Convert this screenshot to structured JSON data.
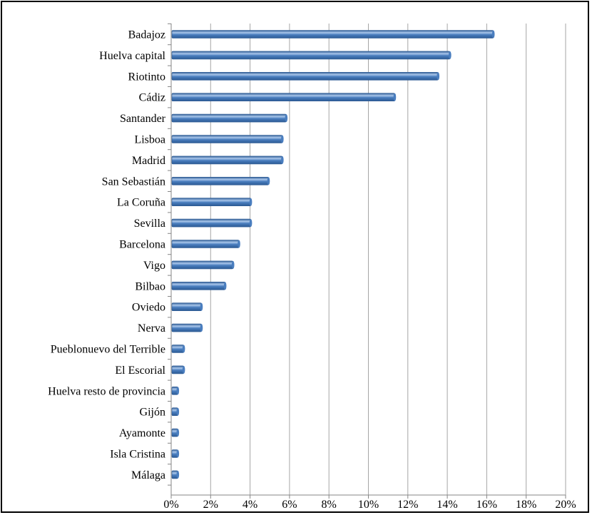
{
  "chart_data": {
    "type": "bar",
    "orientation": "horizontal",
    "title": "",
    "xlabel": "",
    "ylabel": "",
    "categories": [
      "Badajoz",
      "Huelva capital",
      "Riotinto",
      "Cádiz",
      "Santander",
      "Lisboa",
      "Madrid",
      "San Sebastián",
      "La Coruña",
      "Sevilla",
      "Barcelona",
      "Vigo",
      "Bilbao",
      "Oviedo",
      "Nerva",
      "Pueblonuevo del Terrible",
      "El Escorial",
      "Huelva resto de provincia",
      "Gijón",
      "Ayamonte",
      "Isla Cristina",
      "Málaga"
    ],
    "values": [
      16.3,
      14.1,
      13.5,
      11.3,
      5.8,
      5.6,
      5.6,
      4.9,
      4.0,
      4.0,
      3.4,
      3.1,
      2.7,
      1.5,
      1.5,
      0.6,
      0.6,
      0.3,
      0.3,
      0.3,
      0.3,
      0.3
    ],
    "xlim": [
      0,
      20
    ],
    "x_ticks": [
      0,
      2,
      4,
      6,
      8,
      10,
      12,
      14,
      16,
      18,
      20
    ],
    "x_tick_labels": [
      "0%",
      "2%",
      "4%",
      "6%",
      "8%",
      "10%",
      "12%",
      "14%",
      "16%",
      "18%",
      "20%"
    ],
    "vertical_grid": true,
    "legend": "none",
    "colors": {
      "bar_fill": "#4a7ebf",
      "bar_highlight": "#a9c6ea",
      "bar_shadow": "#2c5a94",
      "grid": "#a6a6a6",
      "axis": "#868686",
      "frame": "#000000"
    }
  }
}
